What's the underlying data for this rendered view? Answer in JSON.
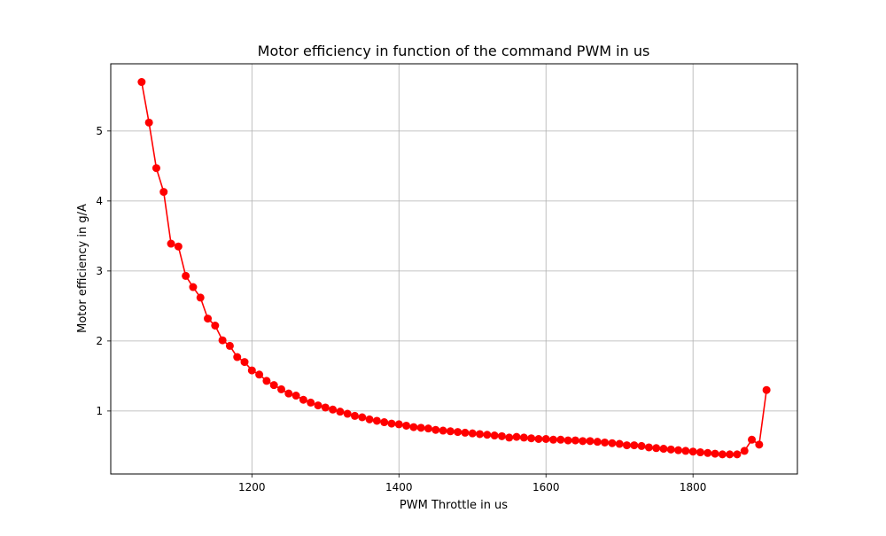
{
  "chart_data": {
    "type": "line",
    "title": "Motor efficiency in function of the command PWM in us",
    "xlabel": "PWM Throttle in us",
    "ylabel": "Motor efficiency in g/A",
    "xlim": [
      1008,
      1942
    ],
    "ylim": [
      0.1,
      5.96
    ],
    "xticks": [
      1200,
      1400,
      1600,
      1800
    ],
    "yticks": [
      1,
      2,
      3,
      4,
      5
    ],
    "grid": true,
    "series": [
      {
        "color": "#ff0000",
        "marker": "circle",
        "x": [
          1050,
          1060,
          1070,
          1080,
          1090,
          1100,
          1110,
          1120,
          1130,
          1140,
          1150,
          1160,
          1170,
          1180,
          1190,
          1200,
          1210,
          1220,
          1230,
          1240,
          1250,
          1260,
          1270,
          1280,
          1290,
          1300,
          1310,
          1320,
          1330,
          1340,
          1350,
          1360,
          1370,
          1380,
          1390,
          1400,
          1410,
          1420,
          1430,
          1440,
          1450,
          1460,
          1470,
          1480,
          1490,
          1500,
          1510,
          1520,
          1530,
          1540,
          1550,
          1560,
          1570,
          1580,
          1590,
          1600,
          1610,
          1620,
          1630,
          1640,
          1650,
          1660,
          1670,
          1680,
          1690,
          1700,
          1710,
          1720,
          1730,
          1740,
          1750,
          1760,
          1770,
          1780,
          1790,
          1800,
          1810,
          1820,
          1830,
          1840,
          1850,
          1860,
          1870,
          1880,
          1890,
          1900
        ],
        "y": [
          5.7,
          5.12,
          4.47,
          4.13,
          3.39,
          3.35,
          2.93,
          2.77,
          2.62,
          2.32,
          2.22,
          2.01,
          1.93,
          1.77,
          1.7,
          1.58,
          1.52,
          1.43,
          1.37,
          1.31,
          1.25,
          1.22,
          1.16,
          1.12,
          1.08,
          1.05,
          1.02,
          0.99,
          0.96,
          0.93,
          0.91,
          0.88,
          0.86,
          0.84,
          0.82,
          0.81,
          0.79,
          0.77,
          0.76,
          0.75,
          0.73,
          0.72,
          0.71,
          0.7,
          0.69,
          0.68,
          0.67,
          0.66,
          0.65,
          0.64,
          0.62,
          0.63,
          0.62,
          0.61,
          0.6,
          0.6,
          0.59,
          0.59,
          0.58,
          0.58,
          0.57,
          0.57,
          0.56,
          0.55,
          0.54,
          0.53,
          0.51,
          0.51,
          0.5,
          0.48,
          0.47,
          0.46,
          0.45,
          0.44,
          0.43,
          0.42,
          0.41,
          0.4,
          0.39,
          0.38,
          0.38,
          0.38,
          0.43,
          0.59,
          0.52,
          1.3
        ]
      }
    ]
  }
}
